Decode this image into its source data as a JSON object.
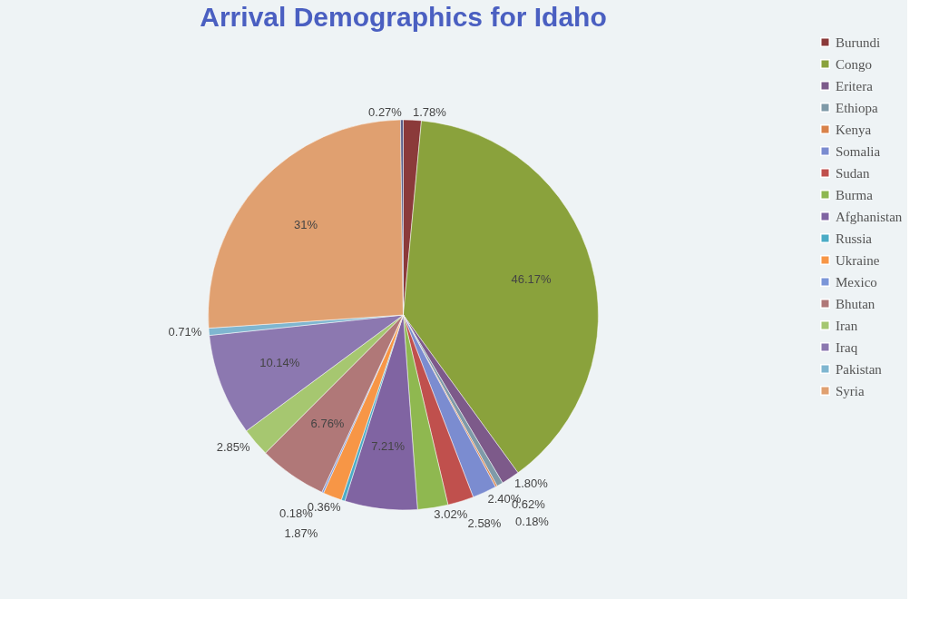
{
  "chart_data": {
    "type": "pie",
    "title": "Arrival Demographics for Idaho",
    "categories": [
      "Burundi",
      "Congo",
      "Eritera",
      "Ethiopa",
      "Kenya",
      "Somalia",
      "Sudan",
      "Burma",
      "Afghanistan",
      "Russia",
      "Ukraine",
      "Mexico",
      "Bhutan",
      "Iran",
      "Iraq",
      "Pakistan",
      "Syria",
      null
    ],
    "values": [
      1.78,
      46.17,
      1.8,
      0.62,
      0.18,
      2.4,
      2.58,
      3.02,
      7.21,
      0.36,
      1.87,
      0.18,
      6.76,
      2.85,
      10.14,
      0.71,
      31,
      0.27
    ],
    "value_labels": [
      "1.78%",
      "46.17%",
      "1.80%",
      "0.62%",
      "0.18%",
      "2.40%",
      "2.58%",
      "3.02%",
      "7.21%",
      "0.36%",
      "1.87%",
      "0.18%",
      "6.76%",
      "2.85%",
      "10.14%",
      "0.71%",
      "31%",
      "0.27%"
    ],
    "colors": [
      "#8b3a3a",
      "#8aa23c",
      "#7d5a8a",
      "#7f9aa8",
      "#d9824a",
      "#7b8cd0",
      "#c0504d",
      "#8fb850",
      "#8064a2",
      "#4bacc6",
      "#f79646",
      "#7b96d8",
      "#b07878",
      "#a6c770",
      "#8c78b0",
      "#7fb6d0",
      "#e0a070",
      "#5a5f8a"
    ],
    "legend": "right"
  }
}
